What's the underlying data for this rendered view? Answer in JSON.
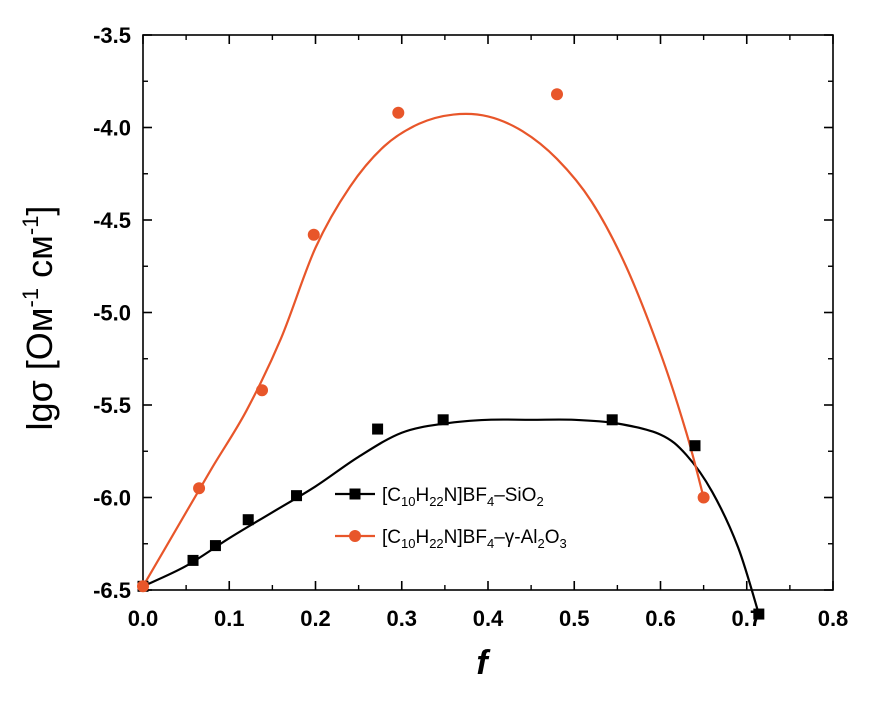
{
  "chart_data": {
    "type": "scatter",
    "xlabel": "f",
    "ylabel_parts": {
      "prefix": "lgσ [Ом",
      "exp1": "-1",
      "mid": " см",
      "exp2": "-1",
      "suffix": "]"
    },
    "xlim": [
      0.0,
      0.8
    ],
    "ylim": [
      -6.5,
      -3.5
    ],
    "x_ticks": [
      "0.0",
      "0.1",
      "0.2",
      "0.3",
      "0.4",
      "0.5",
      "0.6",
      "0.7",
      "0.8"
    ],
    "y_ticks": [
      "-3.5",
      "-4.0",
      "-4.5",
      "-5.0",
      "-5.5",
      "-6.0",
      "-6.5"
    ],
    "grid": false,
    "legend_position": "lower-center",
    "series": [
      {
        "legend": [
          {
            "t": "[C",
            "s": ""
          },
          {
            "t": "10",
            "s": "sub"
          },
          {
            "t": "H",
            "s": ""
          },
          {
            "t": "22",
            "s": "sub"
          },
          {
            "t": "N]BF",
            "s": ""
          },
          {
            "t": "4",
            "s": "sub"
          },
          {
            "t": "–SiO",
            "s": ""
          },
          {
            "t": "2",
            "s": "sub"
          }
        ],
        "color": "#000000",
        "marker": "square",
        "points": [
          {
            "x": 0.0,
            "y": -6.48
          },
          {
            "x": 0.058,
            "y": -6.34
          },
          {
            "x": 0.084,
            "y": -6.26
          },
          {
            "x": 0.122,
            "y": -6.12
          },
          {
            "x": 0.178,
            "y": -5.99
          },
          {
            "x": 0.272,
            "y": -5.63
          },
          {
            "x": 0.348,
            "y": -5.58
          },
          {
            "x": 0.544,
            "y": -5.58
          },
          {
            "x": 0.64,
            "y": -5.72
          },
          {
            "x": 0.714,
            "y": -6.63
          }
        ],
        "fit": [
          {
            "x": 0.0,
            "y": -6.48
          },
          {
            "x": 0.05,
            "y": -6.37
          },
          {
            "x": 0.1,
            "y": -6.22
          },
          {
            "x": 0.15,
            "y": -6.08
          },
          {
            "x": 0.2,
            "y": -5.94
          },
          {
            "x": 0.25,
            "y": -5.78
          },
          {
            "x": 0.3,
            "y": -5.65
          },
          {
            "x": 0.35,
            "y": -5.6
          },
          {
            "x": 0.4,
            "y": -5.58
          },
          {
            "x": 0.45,
            "y": -5.58
          },
          {
            "x": 0.5,
            "y": -5.58
          },
          {
            "x": 0.55,
            "y": -5.6
          },
          {
            "x": 0.6,
            "y": -5.66
          },
          {
            "x": 0.63,
            "y": -5.77
          },
          {
            "x": 0.66,
            "y": -5.97
          },
          {
            "x": 0.69,
            "y": -6.27
          },
          {
            "x": 0.714,
            "y": -6.63
          }
        ]
      },
      {
        "legend": [
          {
            "t": "[C",
            "s": ""
          },
          {
            "t": "10",
            "s": "sub"
          },
          {
            "t": "H",
            "s": ""
          },
          {
            "t": "22",
            "s": "sub"
          },
          {
            "t": "N]BF",
            "s": ""
          },
          {
            "t": "4",
            "s": "sub"
          },
          {
            "t": "–γ-Al",
            "s": ""
          },
          {
            "t": "2",
            "s": "sub"
          },
          {
            "t": "O",
            "s": ""
          },
          {
            "t": "3",
            "s": "sub"
          }
        ],
        "color": "#e8562a",
        "marker": "circle",
        "points": [
          {
            "x": 0.0,
            "y": -6.48
          },
          {
            "x": 0.065,
            "y": -5.95
          },
          {
            "x": 0.138,
            "y": -5.42
          },
          {
            "x": 0.198,
            "y": -4.58
          },
          {
            "x": 0.296,
            "y": -3.92
          },
          {
            "x": 0.48,
            "y": -3.82
          },
          {
            "x": 0.65,
            "y": -6.0
          }
        ],
        "fit": [
          {
            "x": 0.0,
            "y": -6.48
          },
          {
            "x": 0.04,
            "y": -6.16
          },
          {
            "x": 0.08,
            "y": -5.84
          },
          {
            "x": 0.12,
            "y": -5.53
          },
          {
            "x": 0.16,
            "y": -5.14
          },
          {
            "x": 0.2,
            "y": -4.65
          },
          {
            "x": 0.24,
            "y": -4.32
          },
          {
            "x": 0.28,
            "y": -4.1
          },
          {
            "x": 0.32,
            "y": -3.98
          },
          {
            "x": 0.36,
            "y": -3.93
          },
          {
            "x": 0.4,
            "y": -3.94
          },
          {
            "x": 0.44,
            "y": -4.02
          },
          {
            "x": 0.48,
            "y": -4.17
          },
          {
            "x": 0.52,
            "y": -4.4
          },
          {
            "x": 0.56,
            "y": -4.75
          },
          {
            "x": 0.6,
            "y": -5.22
          },
          {
            "x": 0.63,
            "y": -5.65
          },
          {
            "x": 0.65,
            "y": -6.0
          }
        ]
      }
    ]
  }
}
